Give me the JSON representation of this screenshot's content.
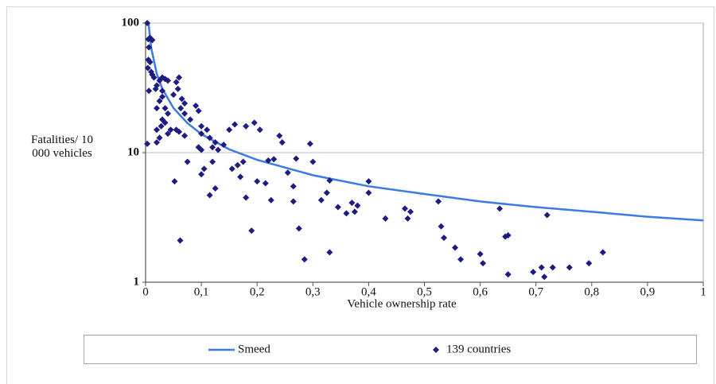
{
  "chart_data": {
    "type": "scatter",
    "x_label": "Vehicle ownership rate",
    "y_label": "Fatalities/ 10 000 vehicles",
    "xlim": [
      0,
      1
    ],
    "ylim": [
      1,
      100
    ],
    "yscale": "log",
    "grid": true,
    "legend": "bottom",
    "xticks": [
      0,
      {
        "value": 0.1,
        "label": "0,1"
      },
      {
        "value": 0.2,
        "label": "0,2"
      },
      {
        "value": 0.3,
        "label": "0,3"
      },
      {
        "value": 0.4,
        "label": "0,4"
      },
      {
        "value": 0.5,
        "label": "0,5"
      },
      {
        "value": 0.6,
        "label": "0,6"
      },
      {
        "value": 0.7,
        "label": "0,7"
      },
      {
        "value": 0.8,
        "label": "0,8"
      },
      {
        "value": 0.9,
        "label": "0,9"
      },
      1
    ],
    "yticks": [
      1,
      10,
      100
    ],
    "series": [
      {
        "name": "Smeed",
        "type": "line",
        "color": "#3b7be8",
        "x": [
          0.0052,
          0.01,
          0.02,
          0.03,
          0.05,
          0.075,
          0.1,
          0.15,
          0.2,
          0.3,
          0.4,
          0.5,
          0.6,
          0.7,
          0.8,
          0.9,
          1
        ],
        "values": [
          99.9,
          64.6,
          40.7,
          31.1,
          22.1,
          16.9,
          13.9,
          10.6,
          8.8,
          6.7,
          5.5,
          4.8,
          4.2,
          3.8,
          3.5,
          3.2,
          3
        ]
      },
      {
        "name": "139 countries",
        "type": "scatter",
        "color": "#1c1c82",
        "x": [
          0.003,
          0.003,
          0.005,
          0.008,
          0.012,
          0.006,
          0.005,
          0.008,
          0.004,
          0.01,
          0.012,
          0.015,
          0.006,
          0.02,
          0.025,
          0.03,
          0.035,
          0.04,
          0.03,
          0.025,
          0.02,
          0.035,
          0.04,
          0.03,
          0.035,
          0.028,
          0.02,
          0.04,
          0.025,
          0.02,
          0.045,
          0.03,
          0.018,
          0.055,
          0.06,
          0.058,
          0.05,
          0.065,
          0.07,
          0.063,
          0.07,
          0.08,
          0.055,
          0.06,
          0.07,
          0.09,
          0.095,
          0.1,
          0.1,
          0.095,
          0.1,
          0.105,
          0.1,
          0.052,
          0.062,
          0.075,
          0.11,
          0.115,
          0.12,
          0.125,
          0.13,
          0.14,
          0.12,
          0.115,
          0.125,
          0.15,
          0.16,
          0.155,
          0.165,
          0.17,
          0.175,
          0.18,
          0.18,
          0.195,
          0.205,
          0.2,
          0.215,
          0.22,
          0.23,
          0.24,
          0.245,
          0.225,
          0.255,
          0.265,
          0.27,
          0.265,
          0.275,
          0.19,
          0.285,
          0.295,
          0.3,
          0.315,
          0.325,
          0.33,
          0.33,
          0.345,
          0.36,
          0.37,
          0.375,
          0.38,
          0.4,
          0.4,
          0.43,
          0.465,
          0.47,
          0.475,
          0.525,
          0.53,
          0.535,
          0.555,
          0.565,
          0.6,
          0.605,
          0.635,
          0.645,
          0.65,
          0.65,
          0.695,
          0.71,
          0.715,
          0.72,
          0.73,
          0.76,
          0.795,
          0.82
        ],
        "values": [
          100,
          11.7,
          75,
          77,
          74,
          65,
          52,
          50,
          45,
          42,
          40,
          38,
          30,
          33,
          36,
          38,
          37,
          36,
          30,
          25,
          22,
          22,
          20,
          18,
          17,
          16,
          15,
          14,
          13,
          12,
          15,
          27,
          31,
          35,
          38,
          31,
          28,
          26,
          24,
          22,
          20,
          18,
          15,
          14.5,
          13.5,
          23,
          21,
          16,
          14,
          11,
          10.5,
          7.5,
          6.8,
          6,
          2.1,
          8.5,
          15,
          13,
          11,
          12,
          10.5,
          11.5,
          8.5,
          4.7,
          5.3,
          15,
          16.5,
          7.5,
          8,
          6.5,
          8.5,
          4.5,
          16,
          17,
          15,
          6,
          5.8,
          8.7,
          8.9,
          13.5,
          12,
          4.3,
          7,
          5.5,
          9,
          4.2,
          2.6,
          2.5,
          1.5,
          11.7,
          8.5,
          4.3,
          4.9,
          6.1,
          1.7,
          3.8,
          3.4,
          4.1,
          3.5,
          3.9,
          6,
          4.9,
          3.1,
          3.7,
          3.1,
          3.5,
          4.2,
          2.7,
          2.2,
          1.85,
          1.5,
          1.65,
          1.4,
          3.7,
          2.25,
          2.3,
          1.15,
          1.2,
          1.3,
          1.1,
          3.3,
          1.3,
          1.3,
          1.4,
          1.7
        ]
      }
    ]
  }
}
